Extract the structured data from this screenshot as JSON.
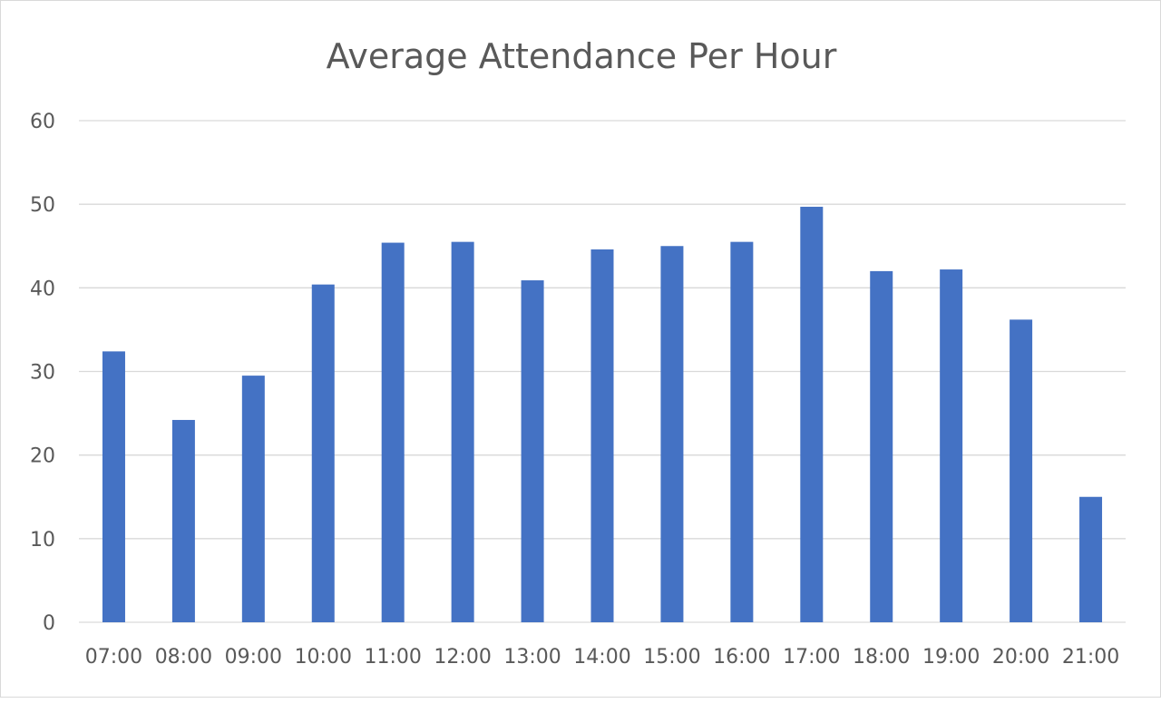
{
  "chart_data": {
    "type": "bar",
    "title": "Average Attendance Per Hour",
    "xlabel": "",
    "ylabel": "",
    "categories": [
      "07:00",
      "08:00",
      "09:00",
      "10:00",
      "11:00",
      "12:00",
      "13:00",
      "14:00",
      "15:00",
      "16:00",
      "17:00",
      "18:00",
      "19:00",
      "20:00",
      "21:00"
    ],
    "values": [
      32.4,
      24.2,
      29.5,
      40.4,
      45.4,
      45.5,
      40.9,
      44.6,
      45.0,
      45.5,
      49.7,
      42.0,
      42.2,
      36.2,
      15.0
    ],
    "ylim": [
      0,
      60
    ],
    "yticks": [
      0,
      10,
      20,
      30,
      40,
      50,
      60
    ],
    "grid": true,
    "legend": "none",
    "colors": {
      "bar": "#4472C4",
      "grid": "#d9d9d9",
      "text": "#595959"
    }
  }
}
